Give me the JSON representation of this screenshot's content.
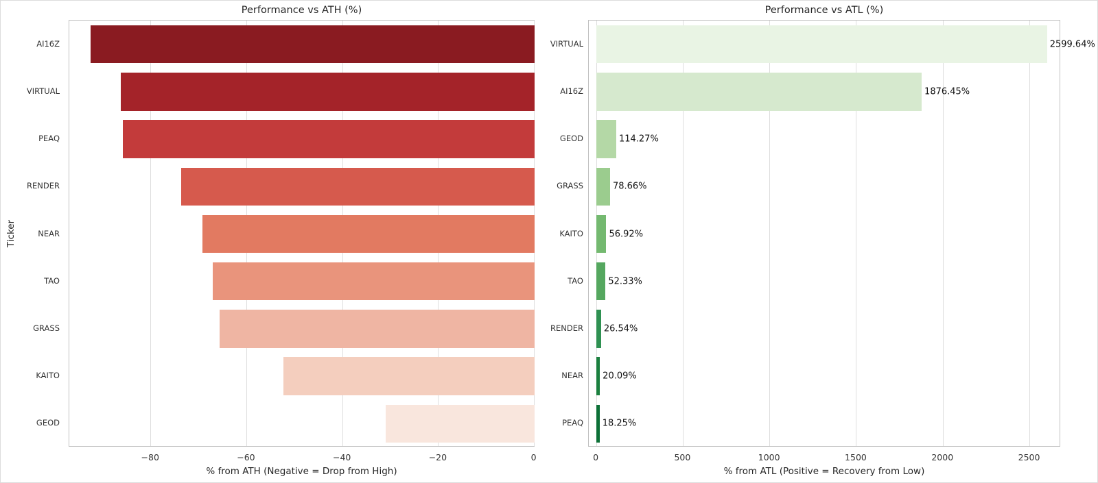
{
  "palette": {
    "background": "#ffffff",
    "grid": "#dedede",
    "spine": "#bfbfbf",
    "text": "#262626",
    "tick_text": "#333333",
    "annotation_text": "#111111"
  },
  "chart_data": [
    {
      "type": "bar",
      "orientation": "horizontal",
      "title": "Performance vs ATH (%)",
      "xlabel": "% from ATH (Negative = Drop from High)",
      "ylabel": "Ticker",
      "categories": [
        "AI16Z",
        "VIRTUAL",
        "PEAQ",
        "RENDER",
        "NEAR",
        "TAO",
        "GRASS",
        "KAITO",
        "GEOD"
      ],
      "values": [
        -92.5,
        -86.3,
        -85.9,
        -73.7,
        -69.2,
        -67.1,
        -65.7,
        -52.3,
        -31.0
      ],
      "bar_colors": [
        "#8a1b21",
        "#a42329",
        "#c33b3b",
        "#d65a4d",
        "#e27a61",
        "#e9947c",
        "#efb5a3",
        "#f4cebe",
        "#f9e6dd"
      ],
      "xlim": [
        -97,
        0.2
      ],
      "xticks": [
        -80,
        -60,
        -40,
        -20,
        0
      ],
      "xtick_labels": [
        "−80",
        "−60",
        "−40",
        "−20",
        "0"
      ],
      "grid": true,
      "legend": null,
      "value_labels": null
    },
    {
      "type": "bar",
      "orientation": "horizontal",
      "title": "Performance vs ATL (%)",
      "xlabel": "% from ATL (Positive = Recovery from Low)",
      "ylabel": "",
      "categories": [
        "VIRTUAL",
        "AI16Z",
        "GEOD",
        "GRASS",
        "KAITO",
        "TAO",
        "RENDER",
        "NEAR",
        "PEAQ"
      ],
      "values": [
        2599.64,
        1876.45,
        114.27,
        78.66,
        56.92,
        52.33,
        26.54,
        20.09,
        18.25
      ],
      "value_labels": [
        "2599.64%",
        "1876.45%",
        "114.27%",
        "78.66%",
        "56.92%",
        "52.33%",
        "26.54%",
        "20.09%",
        "18.25%"
      ],
      "bar_colors": [
        "#e9f4e4",
        "#d6e9ce",
        "#b4d8a6",
        "#9bcc8e",
        "#74b970",
        "#55a75f",
        "#2f9152",
        "#1b803f",
        "#0d7037"
      ],
      "xlim": [
        -44,
        2680
      ],
      "xticks": [
        0,
        500,
        1000,
        1500,
        2000,
        2500
      ],
      "xtick_labels": [
        "0",
        "500",
        "1000",
        "1500",
        "2000",
        "2500"
      ],
      "grid": true,
      "legend": null
    }
  ]
}
